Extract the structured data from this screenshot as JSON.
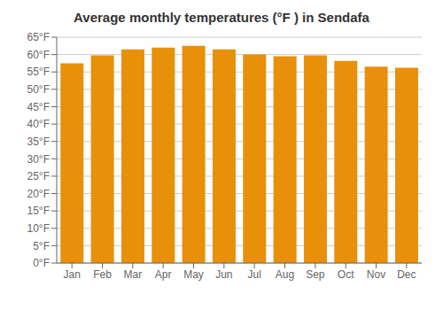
{
  "chart_data": {
    "type": "bar",
    "title": "Average monthly temperatures (°F ) in Sendafa",
    "categories": [
      "Jan",
      "Feb",
      "Mar",
      "Apr",
      "May",
      "Jun",
      "Jul",
      "Aug",
      "Sep",
      "Oct",
      "Nov",
      "Dec"
    ],
    "values": [
      57.5,
      59.8,
      61.5,
      62.0,
      62.5,
      61.5,
      60.0,
      59.5,
      59.8,
      58.2,
      56.5,
      56.2
    ],
    "color": "#E8900A",
    "ylim": [
      0,
      65
    ],
    "yticks": [
      {
        "value": 0,
        "label": "0°F"
      },
      {
        "value": 5,
        "label": "5°F"
      },
      {
        "value": 10,
        "label": "10°F"
      },
      {
        "value": 15,
        "label": "15°F"
      },
      {
        "value": 20,
        "label": "20°F"
      },
      {
        "value": 25,
        "label": "25°F"
      },
      {
        "value": 30,
        "label": "30°F"
      },
      {
        "value": 35,
        "label": "35°F"
      },
      {
        "value": 40,
        "label": "40°F"
      },
      {
        "value": 45,
        "label": "45°F"
      },
      {
        "value": 50,
        "label": "50°F"
      },
      {
        "value": 55,
        "label": "55°F"
      },
      {
        "value": 60,
        "label": "60°F"
      },
      {
        "value": 65,
        "label": "65°F"
      }
    ],
    "grid": true
  }
}
